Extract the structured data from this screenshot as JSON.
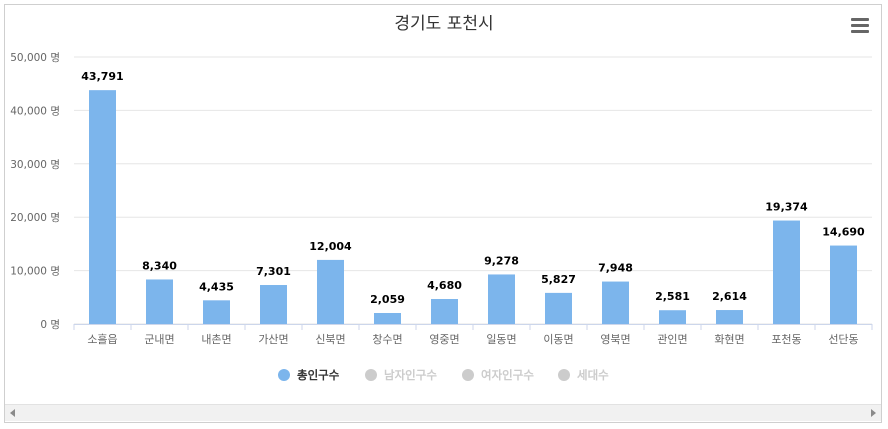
{
  "chart_data": {
    "type": "bar",
    "title": "경기도 포천시",
    "categories": [
      "소흘읍",
      "군내면",
      "내촌면",
      "가산면",
      "신북면",
      "창수면",
      "영중면",
      "일동면",
      "이동면",
      "영북면",
      "관인면",
      "화현면",
      "포천동",
      "선단동"
    ],
    "series": [
      {
        "name": "총인구수",
        "values": [
          43791,
          8340,
          4435,
          7301,
          12004,
          2059,
          4680,
          9278,
          5827,
          7948,
          2581,
          2614,
          19374,
          14690
        ],
        "visible": true,
        "color": "#7cb5ec"
      },
      {
        "name": "남자인구수",
        "visible": false,
        "color": "#cccccc"
      },
      {
        "name": "여자인구수",
        "visible": false,
        "color": "#cccccc"
      },
      {
        "name": "세대수",
        "visible": false,
        "color": "#cccccc"
      }
    ],
    "data_labels": [
      "43,791",
      "8,340",
      "4,435",
      "7,301",
      "12,004",
      "2,059",
      "4,680",
      "9,278",
      "5,827",
      "7,948",
      "2,581",
      "2,614",
      "19,374",
      "14,690"
    ],
    "yticks": [
      "0 명",
      "10,000 명",
      "20,000 명",
      "30,000 명",
      "40,000 명",
      "50,000 명"
    ],
    "ylim": [
      0,
      50000
    ],
    "grid": true,
    "legend": "bottom-center"
  },
  "colors": {
    "bar": "#7cb5ec",
    "hidden_legend": "#cccccc",
    "grid": "#e6e6e6",
    "text": "#333333"
  },
  "icons": {
    "menu": "hamburger-menu-icon",
    "scroll_left": "arrow-left-icon",
    "scroll_right": "arrow-right-icon"
  }
}
